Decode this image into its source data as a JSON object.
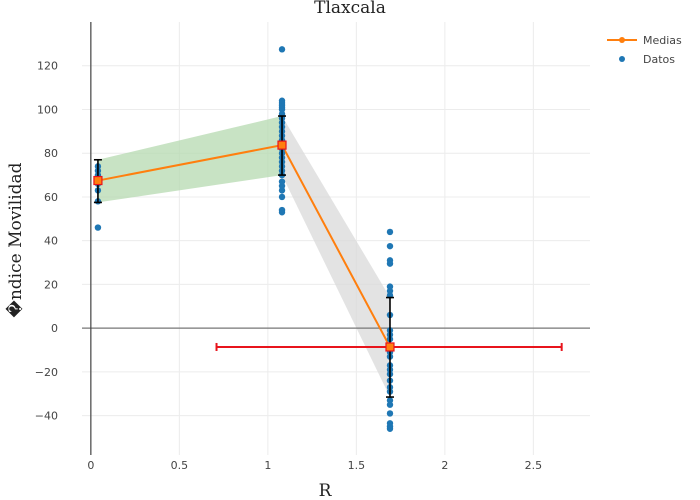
{
  "chart_data": {
    "type": "scatter",
    "title": "Tlaxcala",
    "xlabel": "R",
    "ylabel": "�ndice Movilidad",
    "xlim": [
      -0.05,
      2.82
    ],
    "ylim": [
      -58,
      140
    ],
    "xticks": [
      0,
      0.5,
      1,
      1.5,
      2,
      2.5
    ],
    "xtick_labels": [
      "0",
      "0.5",
      "1",
      "1.5",
      "2",
      "2.5"
    ],
    "yticks": [
      -40,
      -20,
      0,
      20,
      40,
      60,
      80,
      100,
      120
    ],
    "ytick_labels": [
      "−40",
      "−20",
      "0",
      "20",
      "40",
      "60",
      "80",
      "100",
      "120"
    ],
    "grid": true,
    "legend": {
      "position": "top-right",
      "entries": [
        "Medias",
        "Datos"
      ]
    },
    "colors": {
      "medias": "#ff7f0e",
      "datos": "#1f77b4",
      "band1": "#b5d9b0",
      "band2": "#d9d9d9",
      "hbar": "#e8141c",
      "errorbar": "#000000",
      "marker_edge": "#e8141c"
    },
    "series": [
      {
        "name": "Medias",
        "type": "line",
        "x": [
          0.04,
          1.08,
          1.69
        ],
        "y": [
          67.5,
          83.7,
          -8.6
        ],
        "y_error": [
          [
            57.5,
            77.0
          ],
          [
            70.0,
            97.0
          ],
          [
            -31.5,
            14.0
          ]
        ]
      },
      {
        "name": "Datos",
        "type": "scatter",
        "points": [
          [
            0.04,
            46
          ],
          [
            0.04,
            58
          ],
          [
            0.04,
            63
          ],
          [
            0.04,
            66
          ],
          [
            0.04,
            68
          ],
          [
            0.04,
            70
          ],
          [
            0.04,
            72
          ],
          [
            0.04,
            74
          ],
          [
            1.08,
            53
          ],
          [
            1.08,
            54
          ],
          [
            1.08,
            60
          ],
          [
            1.08,
            63
          ],
          [
            1.08,
            65
          ],
          [
            1.08,
            67
          ],
          [
            1.08,
            70
          ],
          [
            1.08,
            72
          ],
          [
            1.08,
            74
          ],
          [
            1.08,
            76
          ],
          [
            1.08,
            78
          ],
          [
            1.08,
            80
          ],
          [
            1.08,
            82
          ],
          [
            1.08,
            84
          ],
          [
            1.08,
            86
          ],
          [
            1.08,
            88
          ],
          [
            1.08,
            90
          ],
          [
            1.08,
            92
          ],
          [
            1.08,
            94
          ],
          [
            1.08,
            96
          ],
          [
            1.08,
            98
          ],
          [
            1.08,
            100
          ],
          [
            1.08,
            101
          ],
          [
            1.08,
            102
          ],
          [
            1.08,
            103
          ],
          [
            1.08,
            104
          ],
          [
            1.08,
            127.5
          ],
          [
            1.69,
            44
          ],
          [
            1.69,
            37.5
          ],
          [
            1.69,
            31
          ],
          [
            1.69,
            29.5
          ],
          [
            1.69,
            19
          ],
          [
            1.69,
            17
          ],
          [
            1.69,
            15
          ],
          [
            1.69,
            6
          ],
          [
            1.69,
            -1
          ],
          [
            1.69,
            -3
          ],
          [
            1.69,
            -5
          ],
          [
            1.69,
            -8
          ],
          [
            1.69,
            -11
          ],
          [
            1.69,
            -13
          ],
          [
            1.69,
            -17
          ],
          [
            1.69,
            -19
          ],
          [
            1.69,
            -21
          ],
          [
            1.69,
            -24
          ],
          [
            1.69,
            -27
          ],
          [
            1.69,
            -29
          ],
          [
            1.69,
            -33
          ],
          [
            1.69,
            -35
          ],
          [
            1.69,
            -39
          ],
          [
            1.69,
            -43.5
          ],
          [
            1.69,
            -45
          ],
          [
            1.69,
            -46
          ]
        ]
      }
    ],
    "bands": [
      {
        "x": [
          0.04,
          1.08
        ],
        "lower": [
          57.5,
          70.0
        ],
        "upper": [
          77.0,
          97.0
        ],
        "color": "band1"
      },
      {
        "x": [
          1.08,
          1.69
        ],
        "lower": [
          70.0,
          -31.5
        ],
        "upper": [
          97.0,
          14.0
        ],
        "color": "band2"
      }
    ],
    "horizontal_errorbar": {
      "x_start": 0.71,
      "x_end": 2.66,
      "y": -8.6
    }
  }
}
